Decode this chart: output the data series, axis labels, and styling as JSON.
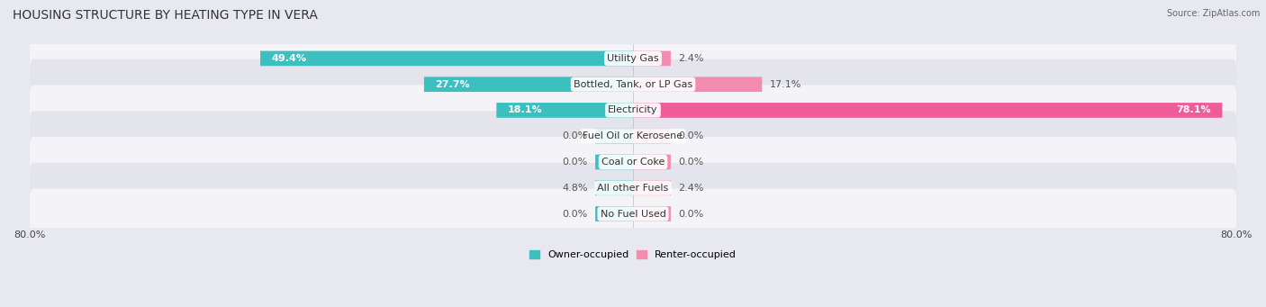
{
  "title": "HOUSING STRUCTURE BY HEATING TYPE IN VERA",
  "source": "Source: ZipAtlas.com",
  "categories": [
    "Utility Gas",
    "Bottled, Tank, or LP Gas",
    "Electricity",
    "Fuel Oil or Kerosene",
    "Coal or Coke",
    "All other Fuels",
    "No Fuel Used"
  ],
  "owner_values": [
    49.4,
    27.7,
    18.1,
    0.0,
    0.0,
    4.8,
    0.0
  ],
  "renter_values": [
    2.4,
    17.1,
    78.1,
    0.0,
    0.0,
    2.4,
    0.0
  ],
  "owner_color": "#3bbfbf",
  "renter_color": "#f48cb1",
  "renter_color_bright": "#ee5c9a",
  "axis_max": 80.0,
  "bar_height": 0.58,
  "background_color": "#e8e8f0",
  "row_bg_even": "#f4f4f8",
  "row_bg_odd": "#e4e4ec",
  "title_fontsize": 10,
  "label_fontsize": 8,
  "value_fontsize": 8,
  "tick_fontsize": 8,
  "legend_fontsize": 8,
  "min_bar_width": 5.0
}
